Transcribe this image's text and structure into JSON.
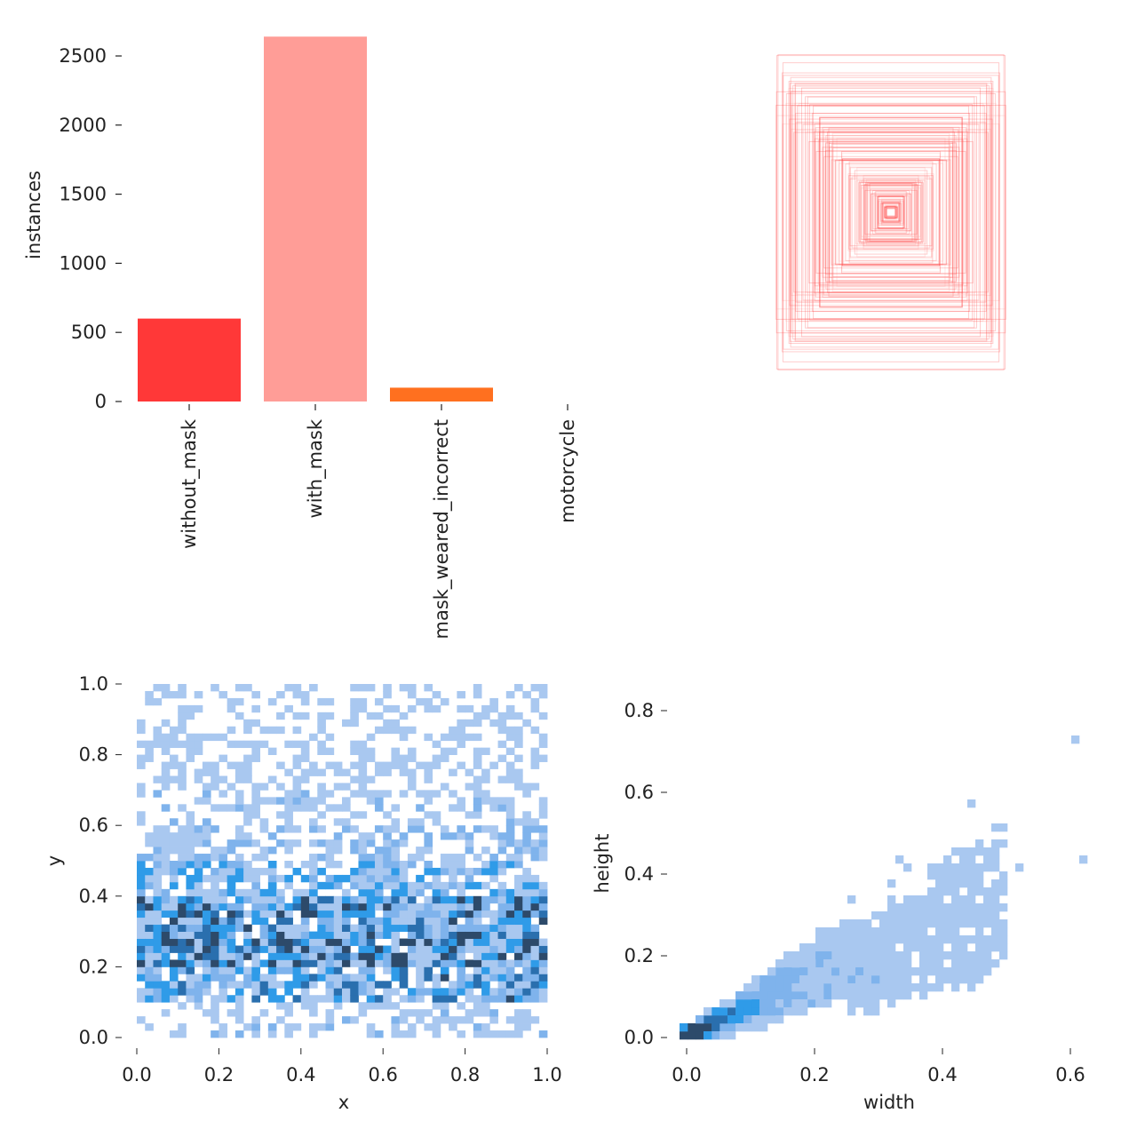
{
  "chart_data": [
    {
      "type": "bar",
      "ylabel": "instances",
      "categories": [
        "without_mask",
        "with_mask",
        "mask_weared_incorrect",
        "motorcycle"
      ],
      "values": [
        600,
        2640,
        100,
        0
      ],
      "colors": [
        "#ff3838",
        "#ff9d97",
        "#ff701f",
        "#ffb21d"
      ],
      "yticks": [
        "0",
        "500",
        "1000",
        "1500",
        "2000",
        "2500"
      ],
      "ylim": [
        0,
        2650
      ],
      "grid": false
    },
    {
      "type": "box-overlay",
      "description_color": "#ff3838"
    },
    {
      "type": "heatmap",
      "xlabel": "x",
      "ylabel": "y",
      "xlim": [
        0,
        1
      ],
      "ylim": [
        0,
        1
      ],
      "xticks": [
        "0.0",
        "0.2",
        "0.4",
        "0.6",
        "0.8",
        "1.0"
      ],
      "yticks": [
        "0.0",
        "0.2",
        "0.4",
        "0.6",
        "0.8",
        "1.0"
      ],
      "bins": 50,
      "y_density_by_decile": [
        0.35,
        0.8,
        1.0,
        0.9,
        0.65,
        0.45,
        0.35,
        0.25,
        0.2,
        0.15
      ],
      "color": "#1f8fe6"
    },
    {
      "type": "heatmap",
      "xlabel": "width",
      "ylabel": "height",
      "xlim": [
        0,
        0.63
      ],
      "ylim": [
        0,
        0.85
      ],
      "xticks": [
        "0.0",
        "0.2",
        "0.4",
        "0.6"
      ],
      "yticks": [
        "0.0",
        "0.2",
        "0.4",
        "0.6",
        "0.8"
      ],
      "bins": 50,
      "color": "#1f8fe6"
    }
  ]
}
